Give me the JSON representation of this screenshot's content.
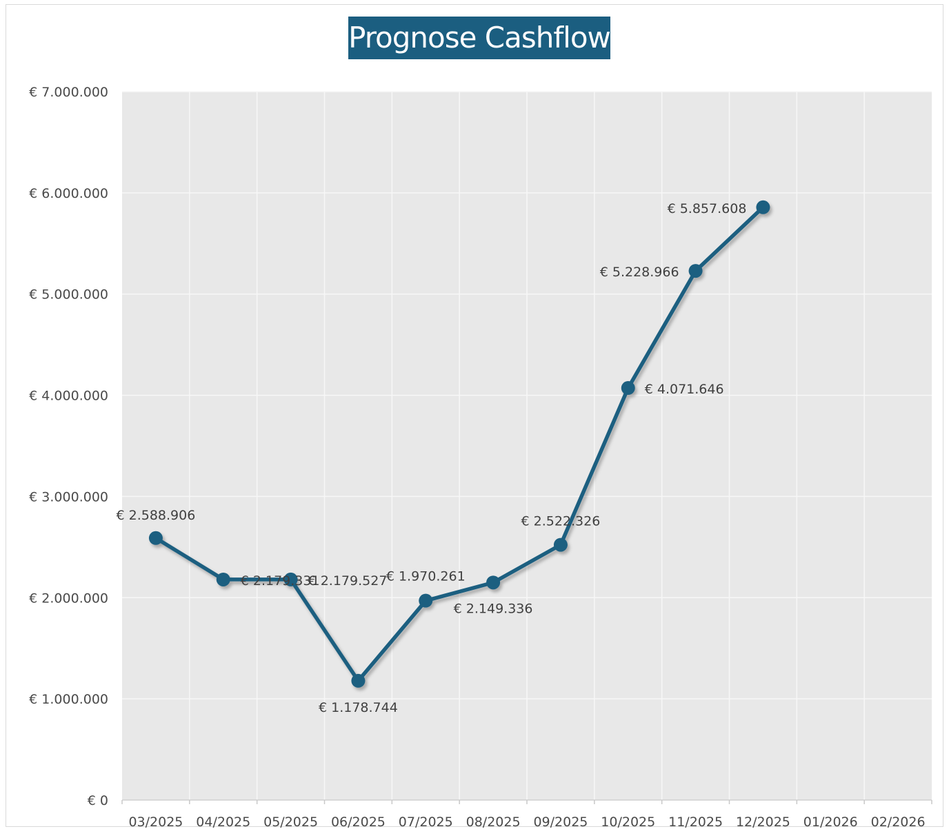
{
  "chart_data": {
    "type": "line",
    "title": "Prognose Cashflow",
    "xlabel": "",
    "ylabel": "",
    "categories": [
      "03/2025",
      "04/2025",
      "05/2025",
      "06/2025",
      "07/2025",
      "08/2025",
      "09/2025",
      "10/2025",
      "11/2025",
      "12/2025",
      "01/2026",
      "02/2026"
    ],
    "ylim": [
      0,
      7000000
    ],
    "yticks": [
      0,
      1000000,
      2000000,
      3000000,
      4000000,
      5000000,
      6000000,
      7000000
    ],
    "ytick_labels": [
      "€ 0",
      "€ 1.000.000",
      "€ 2.000.000",
      "€ 3.000.000",
      "€ 4.000.000",
      "€ 5.000.000",
      "€ 6.000.000",
      "€ 7.000.000"
    ],
    "grid": true,
    "legend": "none",
    "colors": {
      "line": "#1b5e80",
      "title_bg": "#1b5e80",
      "plot_bg": "#e8e8e8",
      "grid": "#f7f7f7"
    },
    "series": [
      {
        "values": [
          2588906,
          2179331,
          2179527,
          1178744,
          1970261,
          2149336,
          2522326,
          4071646,
          5228966,
          5857608,
          null,
          null
        ],
        "data_labels": [
          "€ 2.588.906",
          "€ 2.179.331",
          "€ 2.179.527",
          "€ 1.178.744",
          "€ 1.970.261",
          "€ 2.149.336",
          "€ 2.522.326",
          "€ 4.071.646",
          "€ 5.228.966",
          "€ 5.857.608",
          null,
          null
        ]
      }
    ]
  }
}
